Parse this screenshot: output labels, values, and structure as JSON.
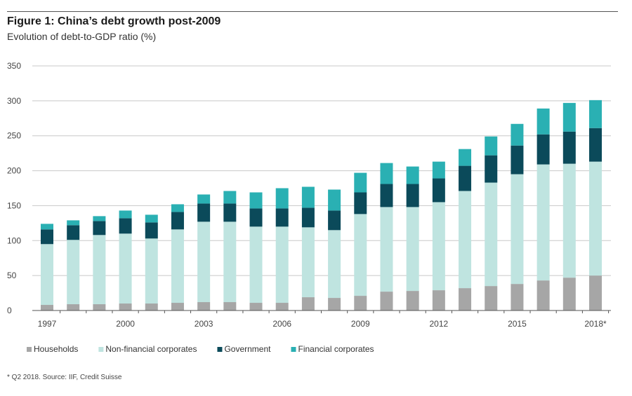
{
  "title": "Figure 1: China’s debt growth post-2009",
  "subtitle": "Evolution of debt-to-GDP ratio (%)",
  "footnote": "* Q2 2018. Source: IIF, Credit Suisse",
  "chart_data": {
    "type": "bar",
    "stacked": true,
    "ylim": [
      0,
      350
    ],
    "yticks": [
      0,
      50,
      100,
      150,
      200,
      250,
      300,
      350
    ],
    "grid": true,
    "legend_position": "bottom-left",
    "categories": [
      "1997",
      "1998",
      "1999",
      "2000",
      "2001",
      "2002",
      "2003",
      "2004",
      "2005",
      "2006",
      "2007",
      "2008",
      "2009",
      "2010",
      "2011",
      "2012",
      "2013",
      "2014",
      "2015",
      "2016",
      "2017",
      "2018*"
    ],
    "xtick_labels": [
      "1997",
      "",
      "",
      "2000",
      "",
      "",
      "2003",
      "",
      "",
      "2006",
      "",
      "",
      "2009",
      "",
      "",
      "2012",
      "",
      "",
      "2015",
      "",
      "",
      "2018*"
    ],
    "series": [
      {
        "name": "Households",
        "color": "#a6a6a6",
        "values": [
          8,
          9,
          9,
          10,
          10,
          11,
          12,
          12,
          11,
          11,
          19,
          18,
          21,
          27,
          28,
          29,
          32,
          35,
          38,
          43,
          47,
          50
        ]
      },
      {
        "name": "Non-financial corporates",
        "color": "#bfe4e0",
        "values": [
          87,
          92,
          99,
          100,
          93,
          105,
          115,
          115,
          109,
          109,
          100,
          97,
          117,
          121,
          120,
          126,
          139,
          148,
          157,
          166,
          163,
          163
        ]
      },
      {
        "name": "Government",
        "color": "#0b4a5a",
        "values": [
          21,
          21,
          20,
          22,
          23,
          25,
          26,
          26,
          26,
          26,
          28,
          28,
          31,
          33,
          33,
          34,
          36,
          39,
          41,
          43,
          46,
          48
        ]
      },
      {
        "name": "Financial corporates",
        "color": "#2ab0b3",
        "values": [
          8,
          7,
          7,
          11,
          11,
          11,
          13,
          18,
          23,
          29,
          30,
          30,
          28,
          30,
          25,
          24,
          24,
          27,
          31,
          37,
          41,
          40
        ]
      }
    ]
  }
}
